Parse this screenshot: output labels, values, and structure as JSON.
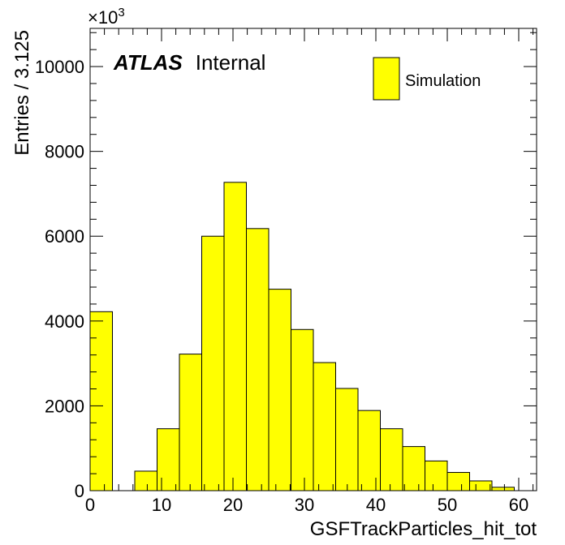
{
  "chart_data": {
    "type": "bar",
    "style": "histogram",
    "bin_edges": [
      0,
      3.125,
      6.25,
      9.375,
      12.5,
      15.625,
      18.75,
      21.875,
      25,
      28.125,
      31.25,
      34.375,
      37.5,
      40.625,
      43.75,
      46.875,
      50,
      53.125,
      56.25,
      59.375
    ],
    "values": [
      4220,
      0,
      460,
      1460,
      3220,
      6000,
      7270,
      6180,
      4750,
      3800,
      3020,
      2410,
      1890,
      1460,
      1040,
      700,
      430,
      230,
      80
    ],
    "xlim": [
      0,
      62.5
    ],
    "ylim": [
      0,
      10900
    ],
    "x_ticks": [
      "0",
      "10",
      "20",
      "30",
      "40",
      "50",
      "60"
    ],
    "y_ticks": [
      "0",
      "2000",
      "4000",
      "6000",
      "8000",
      "10000"
    ],
    "xlabel": "GSFTrackParticles_hit_tot",
    "ylabel": "Entries / 3.125",
    "y_multiplier": "×10",
    "y_multiplier_exp": "3",
    "atlas_label": "ATLAS",
    "atlas_sublabel": "Internal",
    "legend": {
      "entries": [
        "Simulation"
      ],
      "placement": "top-right"
    },
    "fill_color": "#ffff00",
    "line_color": "#000000",
    "grid": false
  }
}
